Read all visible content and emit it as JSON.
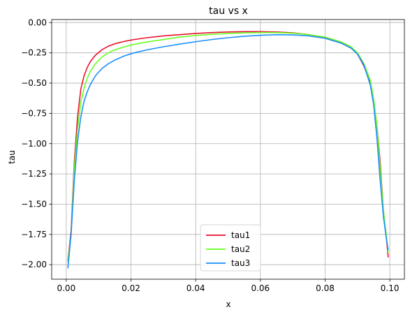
{
  "chart_data": {
    "type": "line",
    "title": "tau vs x",
    "xlabel": "x",
    "ylabel": "tau",
    "xlim": [
      -0.0045,
      0.1045
    ],
    "ylim": [
      -2.12,
      0.025
    ],
    "grid": true,
    "legend_placement": "lower center",
    "x_ticks": [
      0.0,
      0.02,
      0.04,
      0.06,
      0.08,
      0.1
    ],
    "x_tick_labels": [
      "0.00",
      "0.02",
      "0.04",
      "0.06",
      "0.08",
      "0.10"
    ],
    "y_ticks": [
      0.0,
      -0.25,
      -0.5,
      -0.75,
      -1.0,
      -1.25,
      -1.5,
      -1.75,
      -2.0
    ],
    "y_tick_labels": [
      "0.00",
      "−0.25",
      "−0.50",
      "−0.75",
      "−1.00",
      "−1.25",
      "−1.50",
      "−1.75",
      "−2.00"
    ],
    "series": [
      {
        "name": "tau1",
        "color": "#e8112d",
        "x": [
          0.0005,
          0.0015,
          0.0025,
          0.0035,
          0.0045,
          0.0055,
          0.0065,
          0.0075,
          0.009,
          0.011,
          0.013,
          0.015,
          0.018,
          0.021,
          0.025,
          0.03,
          0.035,
          0.04,
          0.045,
          0.05,
          0.055,
          0.06,
          0.065,
          0.07,
          0.075,
          0.08,
          0.085,
          0.088,
          0.09,
          0.092,
          0.094,
          0.095,
          0.096,
          0.097,
          0.098,
          0.099,
          0.0995
        ],
        "y": [
          -1.97,
          -1.72,
          -1.15,
          -0.78,
          -0.55,
          -0.44,
          -0.37,
          -0.32,
          -0.27,
          -0.225,
          -0.195,
          -0.175,
          -0.155,
          -0.14,
          -0.125,
          -0.11,
          -0.1,
          -0.09,
          -0.083,
          -0.078,
          -0.075,
          -0.075,
          -0.078,
          -0.085,
          -0.1,
          -0.125,
          -0.17,
          -0.21,
          -0.26,
          -0.36,
          -0.5,
          -0.65,
          -0.85,
          -1.15,
          -1.55,
          -1.8,
          -1.94
        ]
      },
      {
        "name": "tau2",
        "color": "#66ff1f",
        "x": [
          0.0005,
          0.0015,
          0.0025,
          0.0035,
          0.0045,
          0.0055,
          0.0065,
          0.0075,
          0.009,
          0.011,
          0.013,
          0.015,
          0.018,
          0.021,
          0.025,
          0.03,
          0.035,
          0.04,
          0.045,
          0.05,
          0.055,
          0.06,
          0.065,
          0.07,
          0.075,
          0.08,
          0.085,
          0.088,
          0.09,
          0.092,
          0.094,
          0.095,
          0.096,
          0.097,
          0.098,
          0.099,
          0.0995
        ],
        "y": [
          -1.98,
          -1.75,
          -1.2,
          -0.88,
          -0.66,
          -0.54,
          -0.46,
          -0.4,
          -0.34,
          -0.285,
          -0.25,
          -0.225,
          -0.2,
          -0.18,
          -0.16,
          -0.14,
          -0.12,
          -0.107,
          -0.097,
          -0.09,
          -0.085,
          -0.082,
          -0.083,
          -0.088,
          -0.1,
          -0.12,
          -0.16,
          -0.2,
          -0.25,
          -0.34,
          -0.48,
          -0.63,
          -0.85,
          -1.2,
          -1.55,
          -1.78,
          -1.9
        ]
      },
      {
        "name": "tau3",
        "color": "#1a8fff",
        "x": [
          0.0005,
          0.0015,
          0.0025,
          0.0035,
          0.0045,
          0.0055,
          0.0065,
          0.0075,
          0.009,
          0.011,
          0.013,
          0.015,
          0.018,
          0.021,
          0.025,
          0.03,
          0.035,
          0.04,
          0.045,
          0.05,
          0.055,
          0.06,
          0.065,
          0.07,
          0.075,
          0.08,
          0.085,
          0.088,
          0.09,
          0.092,
          0.094,
          0.095,
          0.096,
          0.097,
          0.098,
          0.099,
          0.0995
        ],
        "y": [
          -2.03,
          -1.75,
          -1.3,
          -0.98,
          -0.78,
          -0.65,
          -0.57,
          -0.51,
          -0.44,
          -0.38,
          -0.34,
          -0.31,
          -0.275,
          -0.25,
          -0.225,
          -0.2,
          -0.178,
          -0.158,
          -0.14,
          -0.125,
          -0.113,
          -0.105,
          -0.1,
          -0.102,
          -0.11,
          -0.13,
          -0.17,
          -0.21,
          -0.26,
          -0.35,
          -0.52,
          -0.68,
          -0.95,
          -1.3,
          -1.6,
          -1.8,
          -1.88
        ]
      }
    ]
  }
}
